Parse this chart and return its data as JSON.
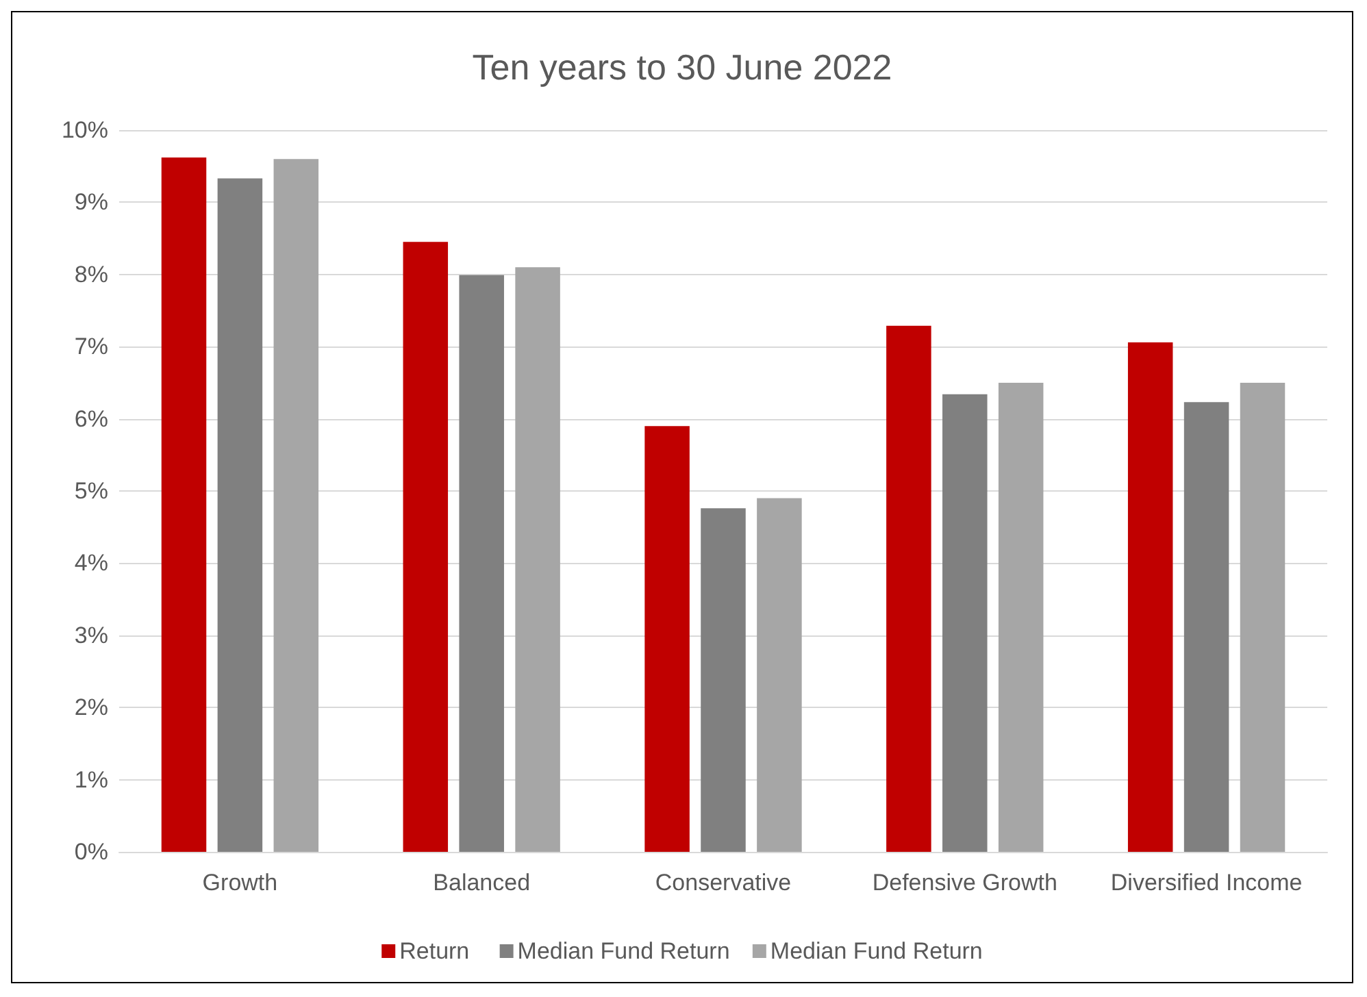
{
  "chart_data": {
    "type": "bar",
    "title": "Ten years to 30 June 2022",
    "categories": [
      "Growth",
      "Balanced",
      "Conservative",
      "Defensive Growth",
      "Diversified Income"
    ],
    "series": [
      {
        "name": "Return",
        "color": "#c00000",
        "values": [
          9.62,
          8.45,
          5.9,
          7.29,
          7.06
        ]
      },
      {
        "name": "Median Fund Return",
        "color": "#808080",
        "values": [
          9.33,
          7.99,
          4.76,
          6.34,
          6.23
        ]
      },
      {
        "name": "Median Fund Return",
        "color": "#a6a6a6",
        "values": [
          9.6,
          8.1,
          4.9,
          6.5,
          6.5
        ]
      }
    ],
    "ylim": [
      0,
      10
    ],
    "yticks": [
      {
        "value": 0,
        "label": "0%"
      },
      {
        "value": 1,
        "label": "1%"
      },
      {
        "value": 2,
        "label": "2%"
      },
      {
        "value": 3,
        "label": "3%"
      },
      {
        "value": 4,
        "label": "4%"
      },
      {
        "value": 5,
        "label": "5%"
      },
      {
        "value": 6,
        "label": "6%"
      },
      {
        "value": 7,
        "label": "7%"
      },
      {
        "value": 8,
        "label": "8%"
      },
      {
        "value": 9,
        "label": "9%"
      },
      {
        "value": 10,
        "label": "10%"
      }
    ],
    "grid": "y",
    "legend": "bottom"
  }
}
